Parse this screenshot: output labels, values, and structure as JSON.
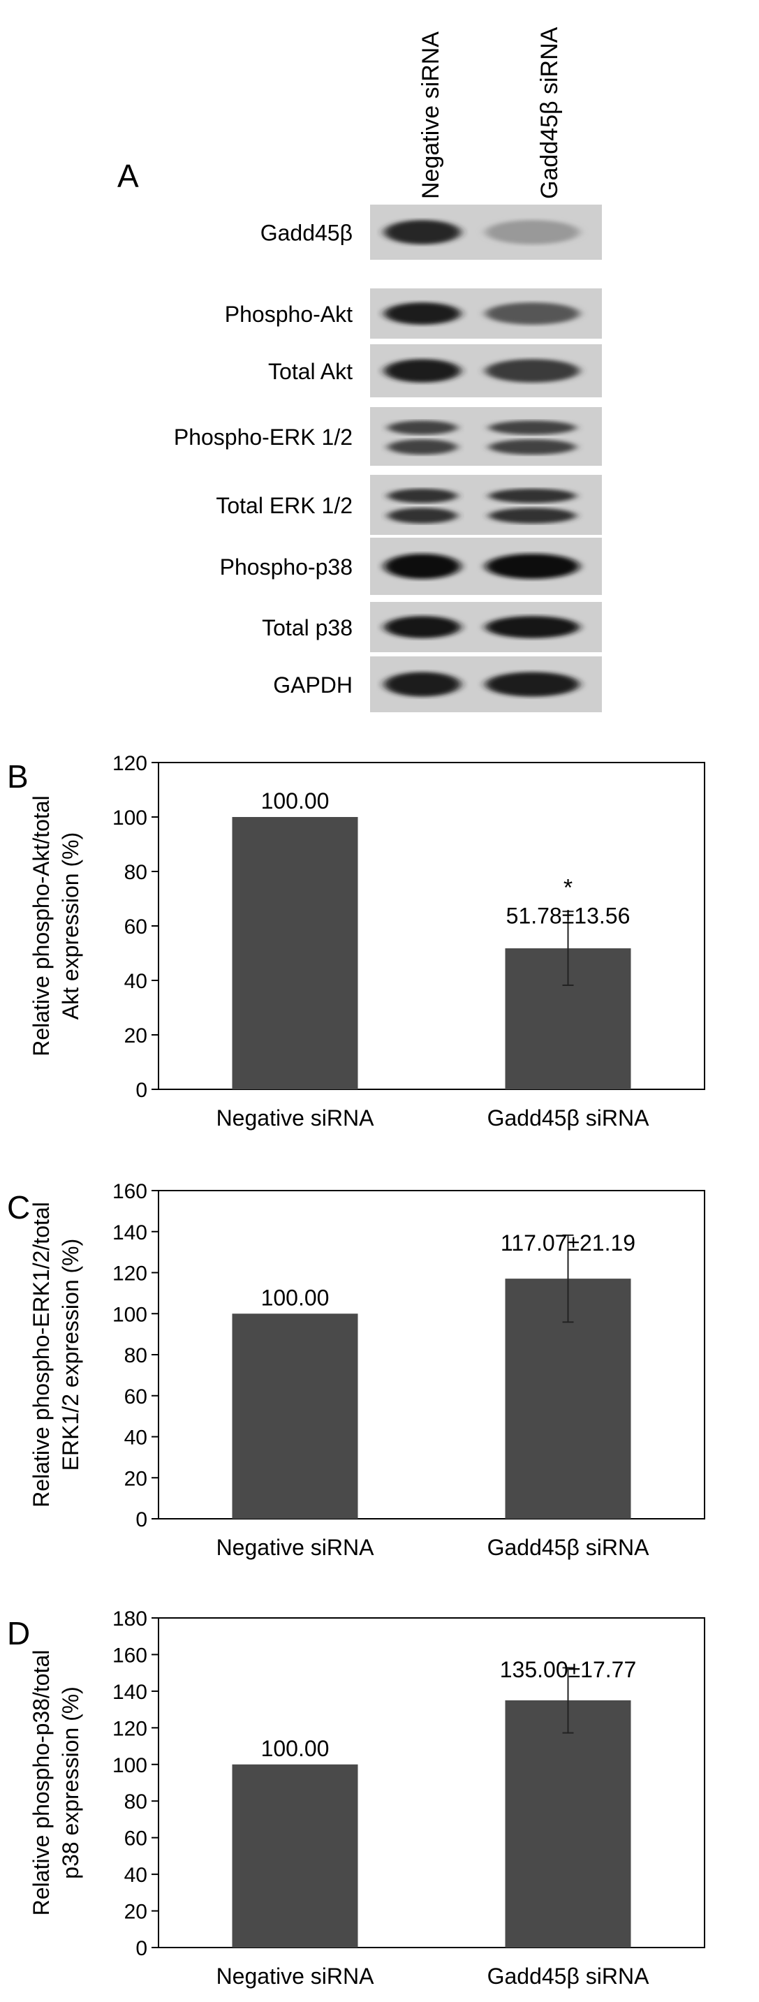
{
  "panel_a": {
    "label": "A",
    "lane_labels": [
      "Negative siRNA",
      "Gadd45β siRNA"
    ],
    "blots": [
      {
        "label": "Gadd45β",
        "band1": 0.85,
        "band2": 0.25,
        "double": false
      },
      {
        "label": "Phospho-Akt",
        "band1": 0.9,
        "band2": 0.6,
        "double": false
      },
      {
        "label": "Total Akt",
        "band1": 0.9,
        "band2": 0.75,
        "double": false
      },
      {
        "label": "Phospho-ERK 1/2",
        "band1": 0.7,
        "band2": 0.7,
        "double": true
      },
      {
        "label": "Total ERK 1/2",
        "band1": 0.8,
        "band2": 0.8,
        "double": true
      },
      {
        "label": "Phospho-p38",
        "band1": 1.0,
        "band2": 1.0,
        "double": false
      },
      {
        "label": "Total p38",
        "band1": 0.95,
        "band2": 0.95,
        "double": false
      },
      {
        "label": "GAPDH",
        "band1": 0.9,
        "band2": 0.9,
        "double": false
      }
    ]
  },
  "chart_data": [
    {
      "type": "bar",
      "panel": "B",
      "categories": [
        "Negative siRNA",
        "Gadd45β siRNA"
      ],
      "values": [
        100.0,
        51.78
      ],
      "errors": [
        0,
        13.56
      ],
      "data_labels": [
        "100.00",
        "51.78±13.56"
      ],
      "significance": [
        "",
        "*"
      ],
      "ylabel_lines": [
        "Relative phospho-Akt/total",
        "Akt expression (%)"
      ],
      "ylim": [
        0,
        120
      ],
      "yticks": [
        0,
        20,
        40,
        60,
        80,
        100,
        120
      ],
      "bar_color": "#4a4a4a"
    },
    {
      "type": "bar",
      "panel": "C",
      "categories": [
        "Negative siRNA",
        "Gadd45β siRNA"
      ],
      "values": [
        100.0,
        117.07
      ],
      "errors": [
        0,
        21.19
      ],
      "data_labels": [
        "100.00",
        "117.07±21.19"
      ],
      "significance": [
        "",
        ""
      ],
      "ylabel_lines": [
        "Relative phospho-ERK1/2/total",
        "ERK1/2 expression (%)"
      ],
      "ylim": [
        0,
        160
      ],
      "yticks": [
        0,
        20,
        40,
        60,
        80,
        100,
        120,
        140,
        160
      ],
      "bar_color": "#4a4a4a"
    },
    {
      "type": "bar",
      "panel": "D",
      "categories": [
        "Negative siRNA",
        "Gadd45β siRNA"
      ],
      "values": [
        100.0,
        135.0
      ],
      "errors": [
        0,
        17.77
      ],
      "data_labels": [
        "100.00",
        "135.00±17.77"
      ],
      "significance": [
        "",
        ""
      ],
      "ylabel_lines": [
        "Relative phospho-p38/total",
        "p38 expression (%)"
      ],
      "ylim": [
        0,
        180
      ],
      "yticks": [
        0,
        20,
        40,
        60,
        80,
        100,
        120,
        140,
        160,
        180
      ],
      "bar_color": "#4a4a4a"
    }
  ]
}
